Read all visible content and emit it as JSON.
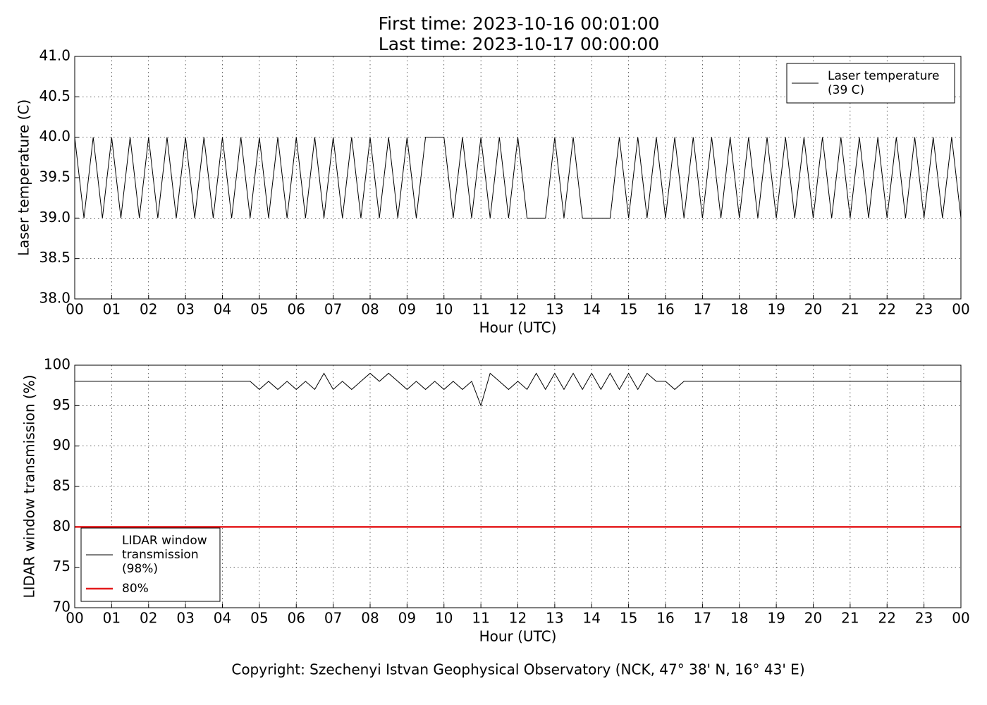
{
  "title": [
    "First time: 2023-10-16 00:01:00",
    "Last time: 2023-10-17 00:00:00"
  ],
  "footer": "Copyright: Szechenyi Istvan Geophysical Observatory (NCK, 47° 38' N, 16° 43' E)",
  "chart_data": [
    {
      "type": "line",
      "xlabel": "Hour (UTC)",
      "ylabel": "Laser temperature (C)",
      "grid": true,
      "legend": "upper right",
      "xlim": [
        0,
        24
      ],
      "ylim": [
        38,
        41
      ],
      "xticks": [
        {
          "value": 0,
          "label": "00"
        },
        {
          "value": 1,
          "label": "01"
        },
        {
          "value": 2,
          "label": "02"
        },
        {
          "value": 3,
          "label": "03"
        },
        {
          "value": 4,
          "label": "04"
        },
        {
          "value": 5,
          "label": "05"
        },
        {
          "value": 6,
          "label": "06"
        },
        {
          "value": 7,
          "label": "07"
        },
        {
          "value": 8,
          "label": "08"
        },
        {
          "value": 9,
          "label": "09"
        },
        {
          "value": 10,
          "label": "10"
        },
        {
          "value": 11,
          "label": "11"
        },
        {
          "value": 12,
          "label": "12"
        },
        {
          "value": 13,
          "label": "13"
        },
        {
          "value": 14,
          "label": "14"
        },
        {
          "value": 15,
          "label": "15"
        },
        {
          "value": 16,
          "label": "16"
        },
        {
          "value": 17,
          "label": "17"
        },
        {
          "value": 18,
          "label": "18"
        },
        {
          "value": 19,
          "label": "19"
        },
        {
          "value": 20,
          "label": "20"
        },
        {
          "value": 21,
          "label": "21"
        },
        {
          "value": 22,
          "label": "22"
        },
        {
          "value": 23,
          "label": "23"
        },
        {
          "value": 24,
          "label": "00"
        }
      ],
      "yticks": [
        {
          "value": 38,
          "label": "38.0"
        },
        38.5,
        {
          "value": 39,
          "label": "39.0"
        },
        39.5,
        {
          "value": 40,
          "label": "40.0"
        },
        40.5,
        {
          "value": 41,
          "label": "41.0"
        }
      ],
      "x": [
        0,
        0.25,
        0.5,
        0.75,
        1,
        1.25,
        1.5,
        1.75,
        2,
        2.25,
        2.5,
        2.75,
        3,
        3.25,
        3.5,
        3.75,
        4,
        4.25,
        4.5,
        4.75,
        5,
        5.25,
        5.5,
        5.75,
        6,
        6.25,
        6.5,
        6.75,
        7,
        7.25,
        7.5,
        7.75,
        8,
        8.25,
        8.5,
        8.75,
        9,
        9.25,
        9.5,
        9.75,
        10,
        10.25,
        10.5,
        10.75,
        11,
        11.25,
        11.5,
        11.75,
        12,
        12.25,
        12.5,
        12.75,
        13,
        13.25,
        13.5,
        13.75,
        14,
        14.25,
        14.5,
        14.75,
        15,
        15.25,
        15.5,
        15.75,
        16,
        16.25,
        16.5,
        16.75,
        17,
        17.25,
        17.5,
        17.75,
        18,
        18.25,
        18.5,
        18.75,
        19,
        19.25,
        19.5,
        19.75,
        20,
        20.25,
        20.5,
        20.75,
        21,
        21.25,
        21.5,
        21.75,
        22,
        22.25,
        22.5,
        22.75,
        23,
        23.25,
        23.5,
        23.75,
        24
      ],
      "series": [
        {
          "name": [
            "Laser temperature",
            "(39 C)"
          ],
          "color": "#000000",
          "values": [
            40,
            39,
            40,
            39,
            40,
            39,
            40,
            39,
            40,
            39,
            40,
            39,
            40,
            39,
            40,
            39,
            40,
            39,
            40,
            39,
            40,
            39,
            40,
            39,
            40,
            39,
            40,
            39,
            40,
            39,
            40,
            39,
            40,
            39,
            40,
            39,
            40,
            39,
            40,
            40,
            40,
            39,
            40,
            39,
            40,
            39,
            40,
            39,
            40,
            39,
            39,
            39,
            40,
            39,
            40,
            39,
            39,
            39,
            39,
            40,
            39,
            40,
            39,
            40,
            39,
            40,
            39,
            40,
            39,
            40,
            39,
            40,
            39,
            40,
            39,
            40,
            39,
            40,
            39,
            40,
            39,
            40,
            39,
            40,
            39,
            40,
            39,
            40,
            39,
            40,
            39,
            40,
            39,
            40,
            39,
            40,
            39
          ]
        }
      ]
    },
    {
      "type": "line",
      "xlabel": "Hour (UTC)",
      "ylabel": "LIDAR window transmission (%)",
      "grid": true,
      "legend": "lower left",
      "xlim": [
        0,
        24
      ],
      "ylim": [
        70,
        100
      ],
      "xticks": [
        {
          "value": 0,
          "label": "00"
        },
        {
          "value": 1,
          "label": "01"
        },
        {
          "value": 2,
          "label": "02"
        },
        {
          "value": 3,
          "label": "03"
        },
        {
          "value": 4,
          "label": "04"
        },
        {
          "value": 5,
          "label": "05"
        },
        {
          "value": 6,
          "label": "06"
        },
        {
          "value": 7,
          "label": "07"
        },
        {
          "value": 8,
          "label": "08"
        },
        {
          "value": 9,
          "label": "09"
        },
        {
          "value": 10,
          "label": "10"
        },
        {
          "value": 11,
          "label": "11"
        },
        {
          "value": 12,
          "label": "12"
        },
        {
          "value": 13,
          "label": "13"
        },
        {
          "value": 14,
          "label": "14"
        },
        {
          "value": 15,
          "label": "15"
        },
        {
          "value": 16,
          "label": "16"
        },
        {
          "value": 17,
          "label": "17"
        },
        {
          "value": 18,
          "label": "18"
        },
        {
          "value": 19,
          "label": "19"
        },
        {
          "value": 20,
          "label": "20"
        },
        {
          "value": 21,
          "label": "21"
        },
        {
          "value": 22,
          "label": "22"
        },
        {
          "value": 23,
          "label": "23"
        },
        {
          "value": 24,
          "label": "00"
        }
      ],
      "yticks": [
        70,
        75,
        80,
        85,
        90,
        95,
        100
      ],
      "x": [
        0,
        0.25,
        0.5,
        0.75,
        1,
        1.25,
        1.5,
        1.75,
        2,
        2.25,
        2.5,
        2.75,
        3,
        3.25,
        3.5,
        3.75,
        4,
        4.25,
        4.5,
        4.75,
        5,
        5.25,
        5.5,
        5.75,
        6,
        6.25,
        6.5,
        6.75,
        7,
        7.25,
        7.5,
        7.75,
        8,
        8.25,
        8.5,
        8.75,
        9,
        9.25,
        9.5,
        9.75,
        10,
        10.25,
        10.5,
        10.75,
        11,
        11.25,
        11.5,
        11.75,
        12,
        12.25,
        12.5,
        12.75,
        13,
        13.25,
        13.5,
        13.75,
        14,
        14.25,
        14.5,
        14.75,
        15,
        15.25,
        15.5,
        15.75,
        16,
        16.25,
        16.5,
        16.75,
        17,
        17.25,
        17.5,
        17.75,
        18,
        18.25,
        18.5,
        18.75,
        19,
        19.25,
        19.5,
        19.75,
        20,
        20.25,
        20.5,
        20.75,
        21,
        21.25,
        21.5,
        21.75,
        22,
        22.25,
        22.5,
        22.75,
        23,
        23.25,
        23.5,
        23.75,
        24
      ],
      "series": [
        {
          "name": [
            "LIDAR window",
            "transmission",
            "(98%)"
          ],
          "color": "#000000",
          "values": [
            98,
            98,
            98,
            98,
            98,
            98,
            98,
            98,
            98,
            98,
            98,
            98,
            98,
            98,
            98,
            98,
            98,
            98,
            98,
            98,
            97,
            98,
            97,
            98,
            97,
            98,
            97,
            99,
            97,
            98,
            97,
            98,
            99,
            98,
            99,
            98,
            97,
            98,
            97,
            98,
            97,
            98,
            97,
            98,
            95,
            99,
            98,
            97,
            98,
            97,
            99,
            97,
            99,
            97,
            99,
            97,
            99,
            97,
            99,
            97,
            99,
            97,
            99,
            98,
            98,
            97,
            98,
            98,
            98,
            98,
            98,
            98,
            98,
            98,
            98,
            98,
            98,
            98,
            98,
            98,
            98,
            98,
            98,
            98,
            98,
            98,
            98,
            98,
            98,
            98,
            98,
            98,
            98,
            98,
            98,
            98,
            98
          ]
        },
        {
          "name": [
            "80%"
          ],
          "color": "#e41a1c",
          "x": [
            0,
            24
          ],
          "values": [
            80,
            80
          ]
        }
      ]
    }
  ]
}
